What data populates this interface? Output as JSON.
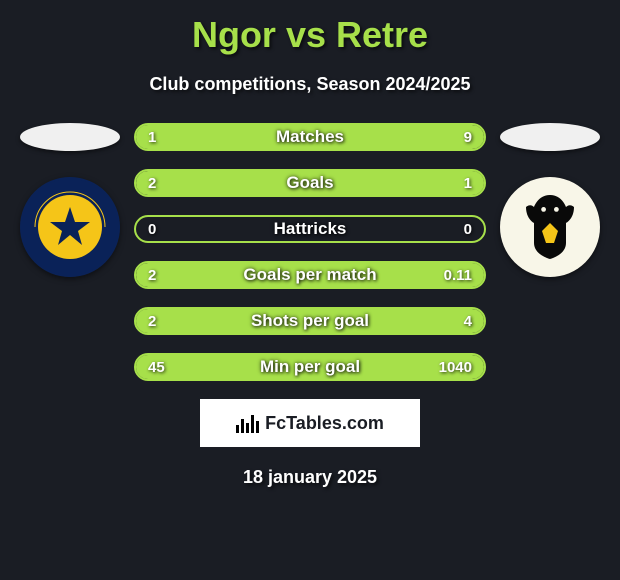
{
  "title": "Ngor vs Retre",
  "subtitle": "Club competitions, Season 2024/2025",
  "date": "18 january 2025",
  "brand": "FcTables.com",
  "colors": {
    "background": "#1a1d24",
    "accent": "#a7e04a",
    "text": "#ffffff",
    "brand_bg": "#ffffff",
    "brand_text": "#1a1d24"
  },
  "bars": [
    {
      "label": "Matches",
      "left_val": "1",
      "right_val": "9",
      "left_pct": 0,
      "right_pct": 100
    },
    {
      "label": "Goals",
      "left_val": "2",
      "right_val": "1",
      "left_pct": 100,
      "right_pct": 0
    },
    {
      "label": "Hattricks",
      "left_val": "0",
      "right_val": "0",
      "left_pct": 0,
      "right_pct": 0
    },
    {
      "label": "Goals per match",
      "left_val": "2",
      "right_val": "0.11",
      "left_pct": 100,
      "right_pct": 0
    },
    {
      "label": "Shots per goal",
      "left_val": "2",
      "right_val": "4",
      "left_pct": 0,
      "right_pct": 100
    },
    {
      "label": "Min per goal",
      "left_val": "45",
      "right_val": "1040",
      "left_pct": 0,
      "right_pct": 100
    }
  ],
  "teams": {
    "left": {
      "name": "Central Coast Mariners"
    },
    "right": {
      "name": "Wellington Phoenix"
    }
  }
}
